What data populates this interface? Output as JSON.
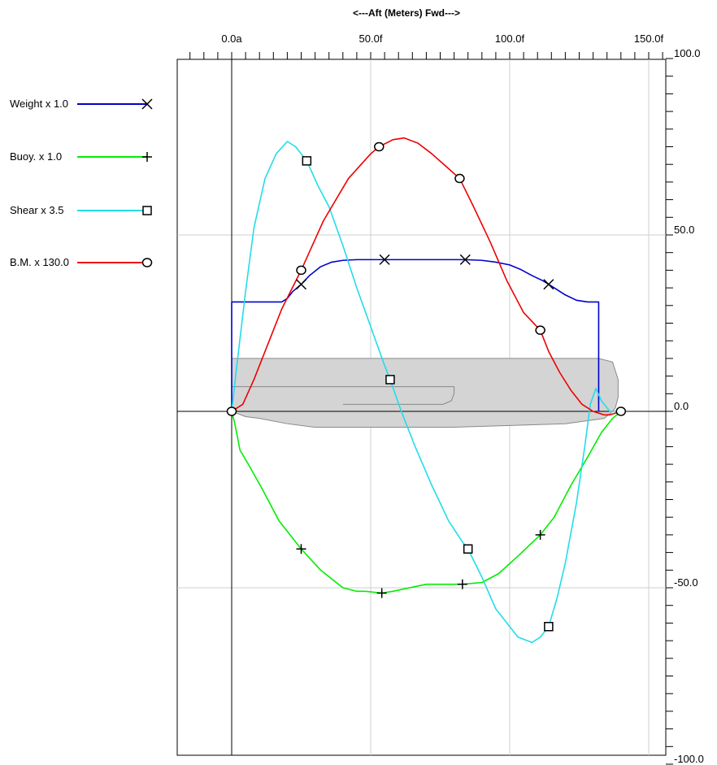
{
  "chart_data": {
    "type": "line",
    "xlabel": "<---Aft  (Meters)  Fwd--->",
    "xlim": [
      -20,
      155
    ],
    "ylim": [
      -100,
      100
    ],
    "x_ticks": [
      {
        "value": 0,
        "label": "0.0a"
      },
      {
        "value": 50,
        "label": "50.0f"
      },
      {
        "value": 100,
        "label": "100.0f"
      },
      {
        "value": 150,
        "label": "150.0f"
      }
    ],
    "y_ticks": [
      {
        "value": 100,
        "label": "100.0"
      },
      {
        "value": 50,
        "label": "50.0"
      },
      {
        "value": 0,
        "label": "0.0"
      },
      {
        "value": -50,
        "label": "-50.0"
      },
      {
        "value": -100,
        "label": "-100.0"
      }
    ],
    "series": [
      {
        "name": "Weight x 1.0",
        "color": "#0000cc",
        "marker": "x",
        "marker_x": [
          25,
          55,
          84,
          114
        ],
        "points": [
          [
            0,
            0
          ],
          [
            0,
            31
          ],
          [
            18,
            31
          ],
          [
            20,
            32
          ],
          [
            22,
            34
          ],
          [
            25,
            36
          ],
          [
            28,
            38.5
          ],
          [
            32,
            41
          ],
          [
            36,
            42.3
          ],
          [
            40,
            42.8
          ],
          [
            45,
            43
          ],
          [
            55,
            43
          ],
          [
            84,
            43
          ],
          [
            90,
            42.8
          ],
          [
            95,
            42.3
          ],
          [
            100,
            41.5
          ],
          [
            104,
            40.2
          ],
          [
            108,
            38.5
          ],
          [
            112,
            37
          ],
          [
            116,
            35
          ],
          [
            120,
            33
          ],
          [
            124,
            31.5
          ],
          [
            128,
            31
          ],
          [
            132,
            31
          ],
          [
            132,
            0
          ]
        ]
      },
      {
        "name": "Buoy. x 1.0",
        "color": "#00ee00",
        "marker": "+",
        "marker_x": [
          25,
          54,
          83,
          111
        ],
        "points": [
          [
            0,
            0
          ],
          [
            1,
            -3
          ],
          [
            3,
            -11
          ],
          [
            6,
            -15
          ],
          [
            11,
            -22
          ],
          [
            17,
            -31
          ],
          [
            25,
            -39
          ],
          [
            32,
            -45
          ],
          [
            40,
            -50
          ],
          [
            45,
            -51
          ],
          [
            48,
            -51
          ],
          [
            54,
            -51.5
          ],
          [
            58,
            -51
          ],
          [
            70,
            -49
          ],
          [
            83,
            -49
          ],
          [
            90,
            -48.5
          ],
          [
            96,
            -46
          ],
          [
            103,
            -41
          ],
          [
            111,
            -35
          ],
          [
            116,
            -30
          ],
          [
            122,
            -21
          ],
          [
            128,
            -13
          ],
          [
            133,
            -6
          ],
          [
            137,
            -2
          ],
          [
            140,
            0
          ]
        ]
      },
      {
        "name": "Shear  x 3.5",
        "color": "#22dde8",
        "marker": "square",
        "marker_x": [
          27,
          57,
          85,
          114
        ],
        "points": [
          [
            0,
            0
          ],
          [
            2,
            14
          ],
          [
            5,
            34
          ],
          [
            8,
            52
          ],
          [
            12,
            66
          ],
          [
            16,
            73
          ],
          [
            20,
            76.5
          ],
          [
            23,
            75
          ],
          [
            27,
            71
          ],
          [
            31,
            64
          ],
          [
            35,
            58
          ],
          [
            40,
            47
          ],
          [
            45,
            35
          ],
          [
            50,
            24
          ],
          [
            55,
            13
          ],
          [
            57,
            9
          ],
          [
            61,
            0
          ],
          [
            66,
            -10
          ],
          [
            72,
            -21
          ],
          [
            78,
            -31
          ],
          [
            83,
            -37
          ],
          [
            85,
            -39
          ],
          [
            90,
            -47
          ],
          [
            95,
            -56
          ],
          [
            100,
            -61
          ],
          [
            103,
            -64
          ],
          [
            108,
            -65.5
          ],
          [
            111,
            -64
          ],
          [
            114,
            -61
          ],
          [
            117,
            -53
          ],
          [
            120,
            -43
          ],
          [
            124,
            -26
          ],
          [
            127,
            -10
          ],
          [
            129,
            2
          ],
          [
            131,
            6.5
          ],
          [
            133,
            3
          ],
          [
            136,
            0
          ],
          [
            140,
            0
          ]
        ]
      },
      {
        "name": "B.M.  x 130.0",
        "color": "#ee0000",
        "marker": "circle",
        "marker_x": [
          0,
          25,
          53,
          82,
          111,
          140
        ],
        "points": [
          [
            0,
            0
          ],
          [
            4,
            2
          ],
          [
            8,
            9
          ],
          [
            13,
            19
          ],
          [
            18,
            29
          ],
          [
            25,
            40
          ],
          [
            33,
            54
          ],
          [
            42,
            66
          ],
          [
            50,
            73
          ],
          [
            53,
            75
          ],
          [
            58,
            77
          ],
          [
            62,
            77.5
          ],
          [
            67,
            76
          ],
          [
            72,
            73
          ],
          [
            77,
            69.5
          ],
          [
            82,
            66
          ],
          [
            87,
            58
          ],
          [
            93,
            48
          ],
          [
            99,
            37
          ],
          [
            105,
            28
          ],
          [
            111,
            23
          ],
          [
            114,
            17
          ],
          [
            118,
            11
          ],
          [
            122,
            6
          ],
          [
            126,
            2
          ],
          [
            130,
            0
          ],
          [
            134,
            -1
          ],
          [
            136,
            -1
          ],
          [
            140,
            0
          ]
        ]
      }
    ],
    "hull_profile": {
      "description_color": "#d4d4d4",
      "outline": [
        [
          0,
          0
        ],
        [
          0,
          15
        ],
        [
          132,
          15
        ],
        [
          137,
          14
        ],
        [
          139,
          9
        ],
        [
          139,
          4
        ],
        [
          138,
          1
        ],
        [
          137,
          0
        ],
        [
          134,
          -2
        ],
        [
          120,
          -3.5
        ],
        [
          100,
          -4
        ],
        [
          80,
          -4.5
        ],
        [
          50,
          -4.5
        ],
        [
          30,
          -4.5
        ],
        [
          20,
          -3.5
        ],
        [
          10,
          -2
        ],
        [
          5,
          -1.5
        ],
        [
          0,
          0
        ]
      ],
      "deck_line": [
        [
          0,
          7
        ],
        [
          80,
          7
        ],
        [
          80,
          5
        ],
        [
          79,
          3
        ],
        [
          76,
          2
        ],
        [
          60,
          2
        ],
        [
          40,
          2
        ]
      ]
    }
  }
}
